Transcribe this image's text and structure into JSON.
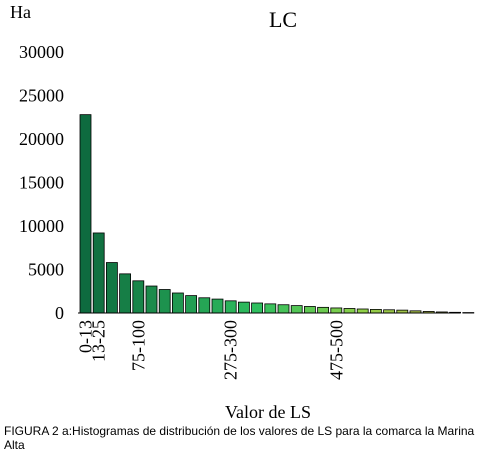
{
  "chart_data": {
    "type": "bar",
    "title": "LC",
    "ylabel": "Ha",
    "xlabel": "Valor de LS",
    "ylim": [
      0,
      30000
    ],
    "yticks": [
      "0",
      "5000",
      "10000",
      "15000",
      "20000",
      "25000",
      "30000"
    ],
    "xtick_labels": [
      {
        "index": 0,
        "text": "0-13"
      },
      {
        "index": 1,
        "text": "13-25"
      },
      {
        "index": 4,
        "text": "75-100"
      },
      {
        "index": 11,
        "text": "275-300"
      },
      {
        "index": 19,
        "text": "475-500"
      }
    ],
    "values": [
      22800,
      9200,
      5800,
      4500,
      3700,
      3100,
      2700,
      2300,
      2000,
      1750,
      1600,
      1400,
      1250,
      1150,
      1050,
      950,
      850,
      750,
      650,
      580,
      520,
      460,
      410,
      370,
      330,
      250,
      180,
      120,
      80,
      50
    ]
  },
  "caption": "FIGURA 2 a:Histogramas de distribución de los valores de LS para la comarca la Marina Alta",
  "colors": {
    "dark_green": "#0e6b3f",
    "mid_green": "#2fbf5f",
    "light_green": "#8fd148",
    "olive": "#b9a948"
  }
}
